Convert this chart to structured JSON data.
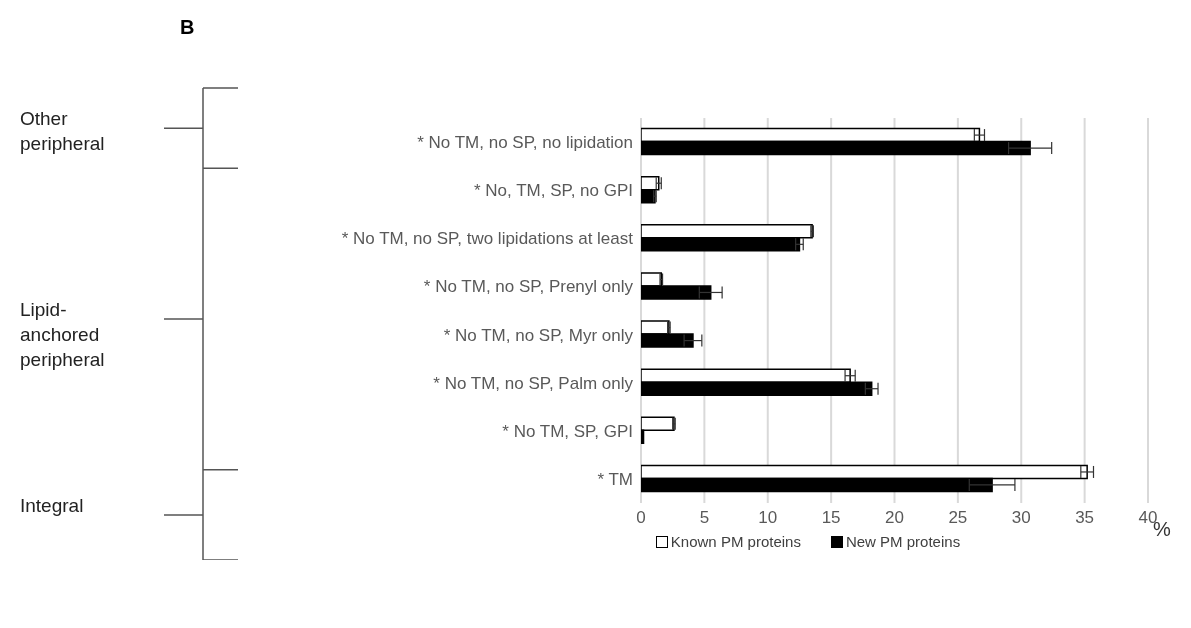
{
  "chart_data": {
    "type": "bar",
    "orientation": "horizontal",
    "title": "B",
    "xlabel": "%",
    "categories": [
      "*   No TM, no SP, no lipidation",
      "*   No, TM, SP, no GPI",
      "*   No TM, no SP, two lipidations at least",
      "*   No TM, no SP, Prenyl only",
      "*   No TM, no SP, Myr only",
      "*   No TM, no SP, Palm only",
      "*   No TM, SP, GPI",
      "*   TM"
    ],
    "series": [
      {
        "name": "Known PM proteins",
        "color": "#ffffff",
        "values": [
          26.7,
          1.4,
          13.5,
          1.6,
          2.2,
          16.5,
          2.6,
          35.2
        ],
        "errors": [
          0.4,
          0.2,
          0.1,
          0.1,
          0.1,
          0.4,
          0.1,
          0.5
        ]
      },
      {
        "name": "New PM proteins",
        "color": "#000000",
        "values": [
          30.7,
          1.1,
          12.5,
          5.5,
          4.1,
          18.2,
          0.2,
          27.7
        ],
        "errors": [
          1.7,
          0.1,
          0.3,
          0.9,
          0.7,
          0.5,
          null,
          1.8
        ]
      }
    ],
    "xlim": [
      0,
      40
    ],
    "xticks": [
      0,
      5,
      10,
      15,
      20,
      25,
      30,
      35,
      40
    ],
    "grid": "x",
    "legend": "bottom",
    "annotations": [
      "Other peripheral",
      "Lipid-anchored peripheral",
      "Integral"
    ]
  }
}
